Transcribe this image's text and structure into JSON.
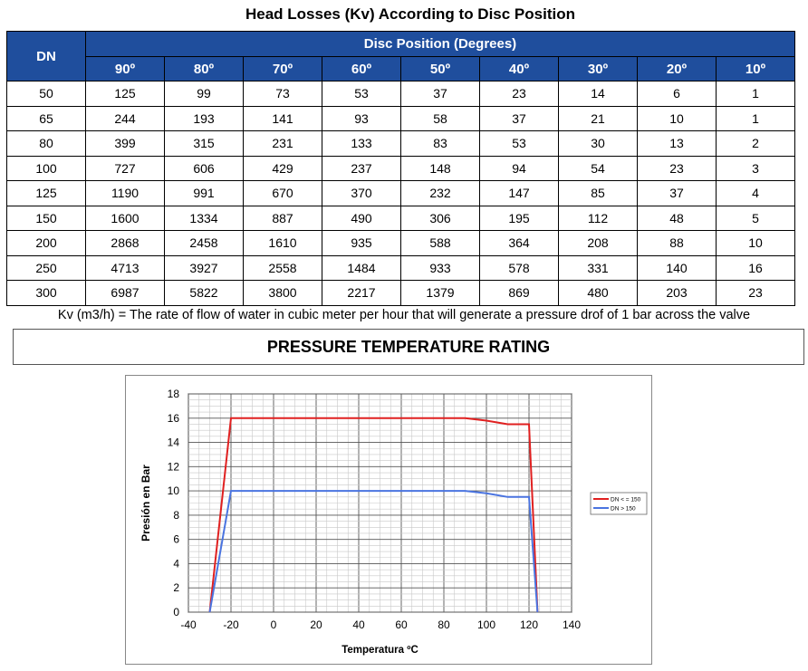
{
  "title": "Head Losses (Kv) According to Disc Position",
  "table": {
    "dn_header": "DN",
    "group_header": "Disc Position (Degrees)",
    "angles": [
      "90º",
      "80º",
      "70º",
      "60º",
      "50º",
      "40º",
      "30º",
      "20º",
      "10º"
    ],
    "rows": [
      [
        "50",
        "125",
        "99",
        "73",
        "53",
        "37",
        "23",
        "14",
        "6",
        "1"
      ],
      [
        "65",
        "244",
        "193",
        "141",
        "93",
        "58",
        "37",
        "21",
        "10",
        "1"
      ],
      [
        "80",
        "399",
        "315",
        "231",
        "133",
        "83",
        "53",
        "30",
        "13",
        "2"
      ],
      [
        "100",
        "727",
        "606",
        "429",
        "237",
        "148",
        "94",
        "54",
        "23",
        "3"
      ],
      [
        "125",
        "1190",
        "991",
        "670",
        "370",
        "232",
        "147",
        "85",
        "37",
        "4"
      ],
      [
        "150",
        "1600",
        "1334",
        "887",
        "490",
        "306",
        "195",
        "112",
        "48",
        "5"
      ],
      [
        "200",
        "2868",
        "2458",
        "1610",
        "935",
        "588",
        "364",
        "208",
        "88",
        "10"
      ],
      [
        "250",
        "4713",
        "3927",
        "2558",
        "1484",
        "933",
        "578",
        "331",
        "140",
        "16"
      ],
      [
        "300",
        "6987",
        "5822",
        "3800",
        "2217",
        "1379",
        "869",
        "480",
        "203",
        "23"
      ]
    ],
    "header_color": "#1f4e9d"
  },
  "note": "Kv (m3/h) = The rate of flow of water in cubic meter per hour that will generate a pressure drof of 1 bar across the valve",
  "banner": "PRESSURE TEMPERATURE RATING",
  "chart_data": {
    "type": "line",
    "title": "",
    "xlabel": "Temperatura ºC",
    "ylabel": "Presión en Bar",
    "xlim": [
      -40,
      140
    ],
    "ylim": [
      0,
      18
    ],
    "xticks": [
      -40,
      -20,
      0,
      20,
      40,
      60,
      80,
      100,
      120,
      140
    ],
    "yticks": [
      0,
      2,
      4,
      6,
      8,
      10,
      12,
      14,
      16,
      18
    ],
    "grid": true,
    "legend_position": "right",
    "series": [
      {
        "name": "DN < = 150",
        "color": "#e02020",
        "points": [
          [
            -30,
            0
          ],
          [
            -20,
            16
          ],
          [
            90,
            16
          ],
          [
            100,
            15.8
          ],
          [
            110,
            15.5
          ],
          [
            120,
            15.5
          ],
          [
            124,
            0
          ]
        ]
      },
      {
        "name": "DN > 150",
        "color": "#4a74e0",
        "points": [
          [
            -30,
            0
          ],
          [
            -20,
            10
          ],
          [
            90,
            10
          ],
          [
            100,
            9.8
          ],
          [
            110,
            9.5
          ],
          [
            120,
            9.5
          ],
          [
            124,
            0
          ]
        ]
      }
    ]
  }
}
